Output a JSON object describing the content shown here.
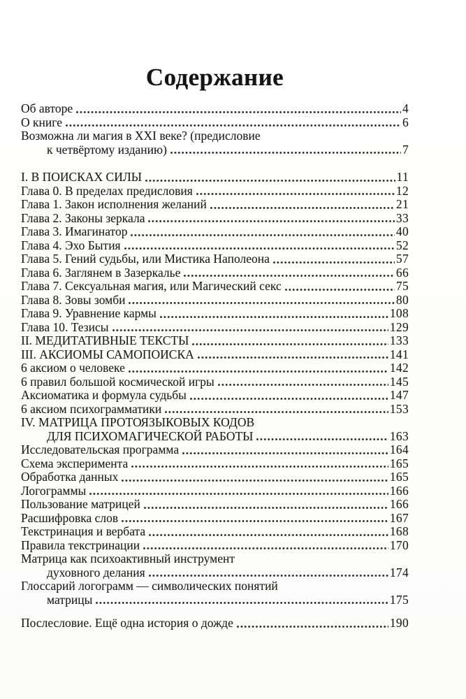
{
  "document": {
    "title": "Содержание",
    "text_color": "#1b1b1b",
    "background_color": "#fdfdfc",
    "toc": [
      {
        "label": "Об авторе",
        "page": "4"
      },
      {
        "label": "О книге",
        "page": "6"
      },
      {
        "label": "Возможна ли магия в XXI веке? (предисловие",
        "page": null
      },
      {
        "label": "к четвёртому изданию)",
        "page": "7",
        "indent": true
      },
      {
        "label": "I. В ПОИСКАХ СИЛЫ",
        "page": "11",
        "section": true,
        "gap": "sm"
      },
      {
        "label": "Глава 0. В пределах предисловия",
        "page": "12"
      },
      {
        "label": "Глава 1. Закон исполнения желаний",
        "page": "21"
      },
      {
        "label": "Глава 2. Законы зеркала",
        "page": "33"
      },
      {
        "label": "Глава 3. Имагинатор",
        "page": "40"
      },
      {
        "label": "Глава 4. Эхо Бытия",
        "page": "52"
      },
      {
        "label": "Глава 5. Гений судьбы, или Мистика Наполеона",
        "page": "57"
      },
      {
        "label": "Глава 6. Заглянем в Зазеркалье",
        "page": "66"
      },
      {
        "label": "Глава 7. Сексуальная магия, или Магический секс",
        "page": "75"
      },
      {
        "label": "Глава 8. Зовы зомби",
        "page": "80"
      },
      {
        "label": "Глава 9. Уравнение кармы",
        "page": "108"
      },
      {
        "label": "Глава 10. Тезисы",
        "page": "129"
      },
      {
        "label": "II. МЕДИТАТИВНЫЕ ТЕКСТЫ",
        "page": "133",
        "section": true
      },
      {
        "label": "III. АКСИОМЫ САМОПОИСКА",
        "page": "141",
        "section": true
      },
      {
        "label": "6 аксиом о человеке",
        "page": "142"
      },
      {
        "label": "6 правил большой космической игры",
        "page": "145"
      },
      {
        "label": "Аксиоматика и формула судьбы",
        "page": "147"
      },
      {
        "label": "6 аксиом психограмматики",
        "page": "153"
      },
      {
        "label": "IV. МАТРИЦА ПРОТОЯЗЫКОВЫХ КОДОВ",
        "page": null,
        "section": true
      },
      {
        "label": "ДЛЯ ПСИХОМАГИЧЕСКОЙ РАБОТЫ",
        "page": "163",
        "section": true,
        "indent": true
      },
      {
        "label": "Исследовательская программа",
        "page": "164"
      },
      {
        "label": "Схема эксперимента",
        "page": "165"
      },
      {
        "label": "Обработка данных",
        "page": "165"
      },
      {
        "label": "Логограммы",
        "page": "166"
      },
      {
        "label": "Пользование матрицей",
        "page": "166"
      },
      {
        "label": "Расшифровка слов",
        "page": "167"
      },
      {
        "label": "Текстринация и вербата",
        "page": "168"
      },
      {
        "label": "Правила текстринации",
        "page": "170"
      },
      {
        "label": "Матрица как психоактивный инструмент",
        "page": null
      },
      {
        "label": "духовного делания",
        "page": "174",
        "indent": true
      },
      {
        "label": "Глоссарий логограмм — символических понятий",
        "page": null
      },
      {
        "label": "матрицы",
        "page": "175",
        "indent": true
      },
      {
        "label": "Послесловие. Ещё одна история о дожде",
        "page": "190",
        "gap": "md"
      }
    ]
  }
}
